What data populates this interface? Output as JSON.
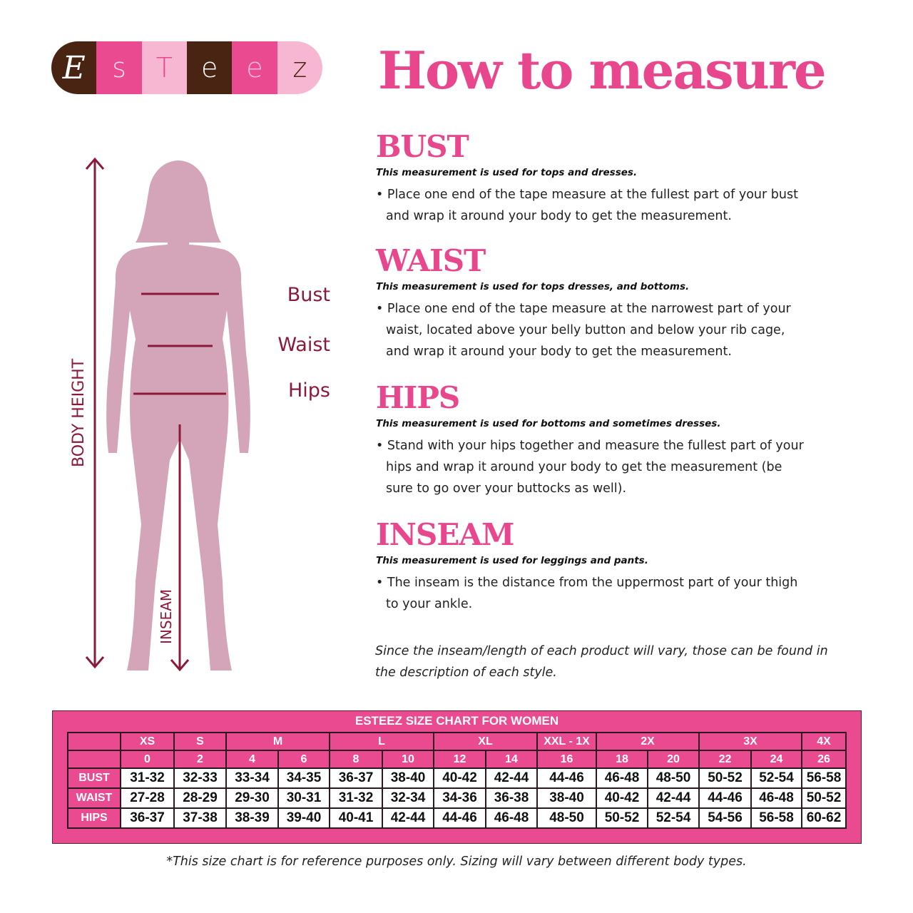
{
  "logo": {
    "letters": [
      "E",
      "s",
      "T",
      "e",
      "e",
      "z"
    ],
    "colors": [
      "#4a2412",
      "#ea4a8f",
      "#f7b6d2",
      "#4a2412",
      "#ea4a8f",
      "#f7b6d2"
    ],
    "text_colors": [
      "#fff",
      "#fde",
      "#e8478d",
      "#fff",
      "#fbd",
      "#4a2412"
    ]
  },
  "title": "How to measure",
  "figure": {
    "body_height": "BODY HEIGHT",
    "inseam": "INSEAM",
    "labels": [
      "Bust",
      "Waist",
      "Hips"
    ]
  },
  "sections": [
    {
      "heading": "BUST",
      "sub": "This measurement is used for tops and dresses.",
      "bullet": "• Place one end of the tape measure at the fullest part of your bust and wrap it around your body to get the measurement."
    },
    {
      "heading": "WAIST",
      "sub": "This measurement is used for tops dresses, and bottoms.",
      "bullet": "• Place one end of the tape measure at the narrowest part of your waist, located above your belly button and below your rib cage, and wrap it around your body to get the measurement."
    },
    {
      "heading": "HIPS",
      "sub": "This measurement is used for bottoms and sometimes dresses.",
      "bullet": "• Stand with your hips together and measure the fullest part of your hips and wrap it around your body to get the measurement (be sure to go over your buttocks as well)."
    },
    {
      "heading": "INSEAM",
      "sub": "This measurement is used for leggings and pants.",
      "bullet": "• The inseam is the distance from the uppermost part of your thigh to your ankle."
    }
  ],
  "note": "Since the inseam/length of each product will vary, those can be found in the description of each style.",
  "size_chart": {
    "title": "ESTEEZ SIZE CHART FOR WOMEN",
    "sizes": [
      {
        "label": "XS",
        "span": 1
      },
      {
        "label": "S",
        "span": 1
      },
      {
        "label": "M",
        "span": 2
      },
      {
        "label": "L",
        "span": 2
      },
      {
        "label": "XL",
        "span": 2
      },
      {
        "label": "XXL - 1X",
        "span": 1
      },
      {
        "label": "2X",
        "span": 2
      },
      {
        "label": "3X",
        "span": 2
      },
      {
        "label": "4X",
        "span": 1
      }
    ],
    "numbers": [
      "0",
      "2",
      "4",
      "6",
      "8",
      "10",
      "12",
      "14",
      "16",
      "18",
      "20",
      "22",
      "24",
      "26"
    ],
    "rows": [
      {
        "label": "BUST",
        "values": [
          "31-32",
          "32-33",
          "33-34",
          "34-35",
          "36-37",
          "38-40",
          "40-42",
          "42-44",
          "44-46",
          "46-48",
          "48-50",
          "50-52",
          "52-54",
          "56-58"
        ]
      },
      {
        "label": "WAIST",
        "values": [
          "27-28",
          "28-29",
          "29-30",
          "30-31",
          "31-32",
          "32-34",
          "34-36",
          "36-38",
          "38-40",
          "40-42",
          "42-44",
          "44-46",
          "46-48",
          "50-52"
        ]
      },
      {
        "label": "HIPS",
        "values": [
          "36-37",
          "37-38",
          "38-39",
          "39-40",
          "40-41",
          "42-44",
          "44-46",
          "46-48",
          "48-50",
          "50-52",
          "52-54",
          "54-56",
          "56-58",
          "60-62"
        ]
      }
    ]
  },
  "footnote": "*This size chart is for reference purposes only. Sizing will vary between different body types.",
  "colors": {
    "pink": "#e8478d",
    "figure": "#d4a5b8",
    "maroon": "#8b1a3a"
  }
}
